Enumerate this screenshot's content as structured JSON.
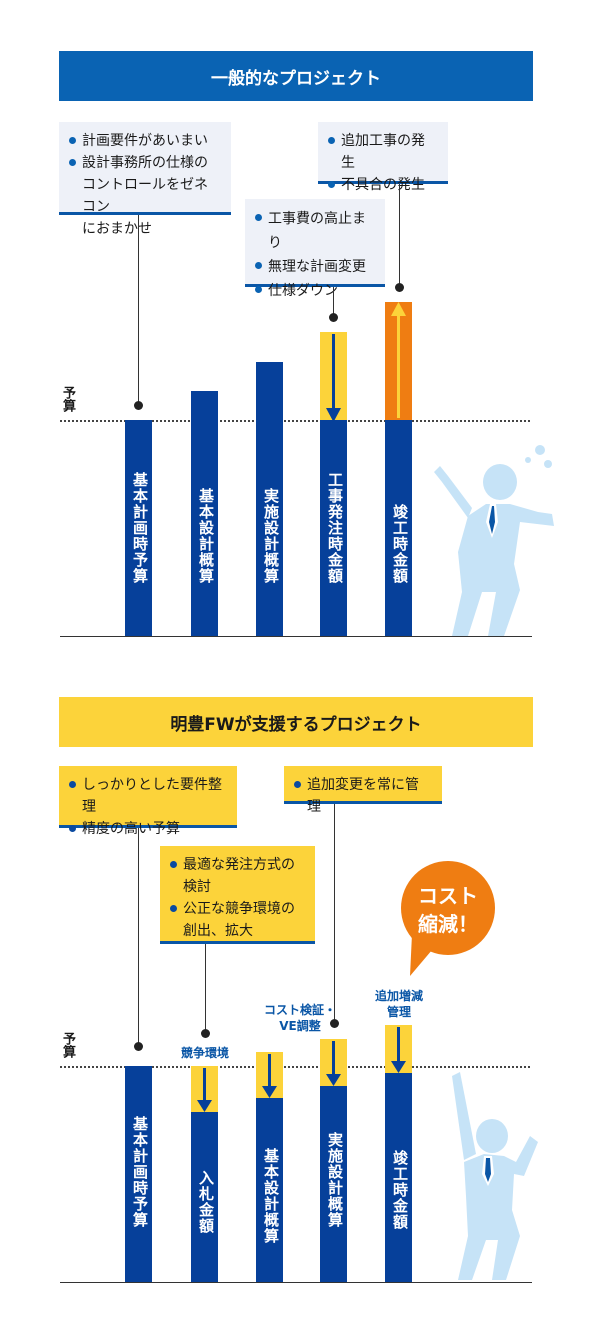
{
  "section1": {
    "title": "一般的なプロジェクト",
    "budget_label": "予算",
    "notes": [
      {
        "items": [
          "計画要件があいまい",
          "設計事務所の仕様の\nコントロールをゼネコン\nにおまかせ"
        ]
      },
      {
        "items": [
          "工事費の高止まり",
          "無理な計画変更",
          "仕様ダウン"
        ]
      },
      {
        "items": [
          "追加工事の発生",
          "不具合の発生"
        ]
      }
    ],
    "bars": [
      "基本計画時予算",
      "基本設計概算",
      "実施設計概算",
      "工事発注時金額",
      "竣工時金額"
    ]
  },
  "section2": {
    "title": "明豊FWが支援するプロジェクト",
    "budget_label": "予算",
    "notes": [
      {
        "items": [
          "しっかりとした要件整理",
          "精度の高い予算"
        ]
      },
      {
        "items": [
          "最適な発注方式の\n検討",
          "公正な競争環境の\n創出、拡大"
        ]
      },
      {
        "items": [
          "追加変更を常に管理"
        ]
      }
    ],
    "bar_annotations": [
      "競争環境",
      "コスト検証・\nVE調整",
      "追加増減\n管理"
    ],
    "bars": [
      "基本計画時予算",
      "入札金額",
      "基本設計概算",
      "実施設計概算",
      "竣工時金額"
    ],
    "bubble": "コスト\n縮減！"
  },
  "colors": {
    "navy": "#06409a",
    "blue": "#0a63b3",
    "yellow": "#fcd33a",
    "orange": "#ef7d12",
    "figure": "#c6e3f7"
  }
}
